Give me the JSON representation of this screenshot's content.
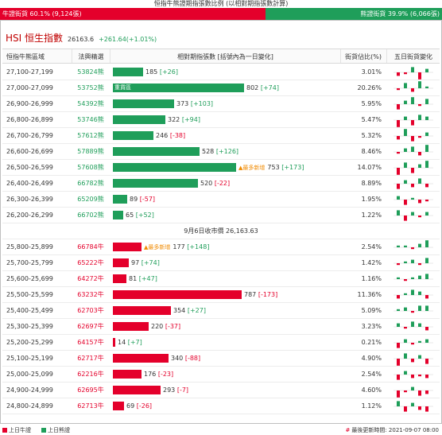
{
  "header": {
    "caption": "恒指牛熊證期指張數比例 (以相對期指張數計算)",
    "bull_label": "牛證街貨 60.1% (9,124張)",
    "bear_label": "熊證街貨 39.9% (6,066張)"
  },
  "index": {
    "name": "HSI 恒生指數",
    "price": "26163.6",
    "change": "+261.64(+1.01%)"
  },
  "table": {
    "headers": {
      "range": "恒指牛熊區域",
      "code": "法興精選",
      "bar": "相對期指張數 [括號內為一日變化]",
      "pct": "街貨佔比(%)",
      "spark": "五日街貨變化"
    },
    "bear_rows": [
      {
        "range": "27,100-27,199",
        "code": "53824熊",
        "value": "185",
        "change": "[+26]",
        "dir": "pos",
        "pct": "3.01%",
        "tag": "",
        "inside": ""
      },
      {
        "range": "27,000-27,099",
        "code": "53752熊",
        "value": "802",
        "change": "[+74]",
        "dir": "pos",
        "pct": "20.26%",
        "tag": "",
        "inside": "重貨區"
      },
      {
        "range": "26,900-26,999",
        "code": "54392熊",
        "value": "373",
        "change": "[+103]",
        "dir": "pos",
        "pct": "5.95%",
        "tag": "",
        "inside": ""
      },
      {
        "range": "26,800-26,899",
        "code": "53746熊",
        "value": "322",
        "change": "[+94]",
        "dir": "pos",
        "pct": "5.47%",
        "tag": "",
        "inside": ""
      },
      {
        "range": "26,700-26,799",
        "code": "57612熊",
        "value": "246",
        "change": "[-38]",
        "dir": "neg",
        "pct": "5.32%",
        "tag": "",
        "inside": ""
      },
      {
        "range": "26,600-26,699",
        "code": "57889熊",
        "value": "528",
        "change": "[+126]",
        "dir": "pos",
        "pct": "8.46%",
        "tag": "",
        "inside": ""
      },
      {
        "range": "26,500-26,599",
        "code": "57608熊",
        "value": "753",
        "change": "[+173]",
        "dir": "pos",
        "pct": "14.07%",
        "tag": "▲最多新增",
        "inside": ""
      },
      {
        "range": "26,400-26,499",
        "code": "66782熊",
        "value": "520",
        "change": "[-22]",
        "dir": "neg",
        "pct": "8.89%",
        "tag": "",
        "inside": ""
      },
      {
        "range": "26,300-26,399",
        "code": "65209熊",
        "value": "89",
        "change": "[-57]",
        "dir": "neg",
        "pct": "1.95%",
        "tag": "",
        "inside": ""
      },
      {
        "range": "26,200-26,299",
        "code": "66702熊",
        "value": "65",
        "change": "[+52]",
        "dir": "pos",
        "pct": "1.22%",
        "tag": "",
        "inside": ""
      }
    ],
    "mid_label": "9月6日收市價 26,163.63",
    "bull_rows": [
      {
        "range": "25,800-25,899",
        "code": "66784牛",
        "value": "177",
        "change": "[+148]",
        "dir": "pos",
        "pct": "2.54%",
        "tag": "▲最多新增",
        "inside": ""
      },
      {
        "range": "25,700-25,799",
        "code": "65222牛",
        "value": "97",
        "change": "[+74]",
        "dir": "pos",
        "pct": "1.42%",
        "tag": "",
        "inside": ""
      },
      {
        "range": "25,600-25,699",
        "code": "64272牛",
        "value": "81",
        "change": "[+47]",
        "dir": "pos",
        "pct": "1.16%",
        "tag": "",
        "inside": ""
      },
      {
        "range": "25,500-25,599",
        "code": "63232牛",
        "value": "787",
        "change": "[-173]",
        "dir": "neg",
        "pct": "11.36%",
        "tag": "",
        "inside": ""
      },
      {
        "range": "25,400-25,499",
        "code": "62703牛",
        "value": "354",
        "change": "[+27]",
        "dir": "pos",
        "pct": "5.09%",
        "tag": "",
        "inside": ""
      },
      {
        "range": "25,300-25,399",
        "code": "62697牛",
        "value": "220",
        "change": "[-37]",
        "dir": "neg",
        "pct": "3.23%",
        "tag": "",
        "inside": ""
      },
      {
        "range": "25,200-25,299",
        "code": "64157牛",
        "value": "14",
        "change": "[+7]",
        "dir": "pos",
        "pct": "0.21%",
        "tag": "",
        "inside": ""
      },
      {
        "range": "25,100-25,199",
        "code": "62717牛",
        "value": "340",
        "change": "[-88]",
        "dir": "neg",
        "pct": "4.90%",
        "tag": "",
        "inside": ""
      },
      {
        "range": "25,000-25,099",
        "code": "62216牛",
        "value": "176",
        "change": "[-23]",
        "dir": "neg",
        "pct": "2.54%",
        "tag": "",
        "inside": ""
      },
      {
        "range": "24,900-24,999",
        "code": "62695牛",
        "value": "293",
        "change": "[-7]",
        "dir": "neg",
        "pct": "4.60%",
        "tag": "",
        "inside": ""
      },
      {
        "range": "24,800-24,899",
        "code": "62713牛",
        "value": "69",
        "change": "[-26]",
        "dir": "neg",
        "pct": "1.12%",
        "tag": "",
        "inside": ""
      }
    ]
  },
  "sparks": {
    "bear": [
      [
        -2,
        -1,
        3,
        -4,
        2
      ],
      [
        -1,
        3,
        -2,
        4,
        1
      ],
      [
        -3,
        2,
        4,
        -1,
        3
      ],
      [
        -4,
        2,
        -3,
        3,
        2
      ],
      [
        -2,
        4,
        -3,
        -1,
        2
      ],
      [
        -1,
        2,
        3,
        -2,
        4
      ],
      [
        -4,
        3,
        -3,
        2,
        4
      ],
      [
        -3,
        2,
        -2,
        3,
        -2
      ],
      [
        2,
        -3,
        1,
        -2,
        -1
      ],
      [
        3,
        -3,
        2,
        -1,
        2
      ]
    ],
    "bull": [
      [
        1,
        1,
        -1,
        2,
        4
      ],
      [
        -1,
        1,
        2,
        -1,
        3
      ],
      [
        1,
        -1,
        1,
        2,
        3
      ],
      [
        -2,
        1,
        3,
        2,
        -2
      ],
      [
        1,
        2,
        -1,
        3,
        3
      ],
      [
        2,
        -1,
        3,
        2,
        -2
      ],
      [
        -3,
        2,
        -1,
        1,
        2
      ],
      [
        -4,
        3,
        -2,
        2,
        -3
      ],
      [
        -3,
        2,
        -2,
        -1,
        -2
      ],
      [
        -4,
        -1,
        2,
        -3,
        -2
      ],
      [
        3,
        -3,
        2,
        -2,
        -3
      ]
    ],
    "up_color": "#1f9e5a",
    "down_color": "#e4002b"
  },
  "legend": {
    "bull": "上日牛證",
    "bear": "上日熊證",
    "hash": "#",
    "update": "最後更新時間: 2021-09-07 08:00"
  },
  "colors": {
    "bull": "#e4002b",
    "bear": "#1f9e5a"
  }
}
